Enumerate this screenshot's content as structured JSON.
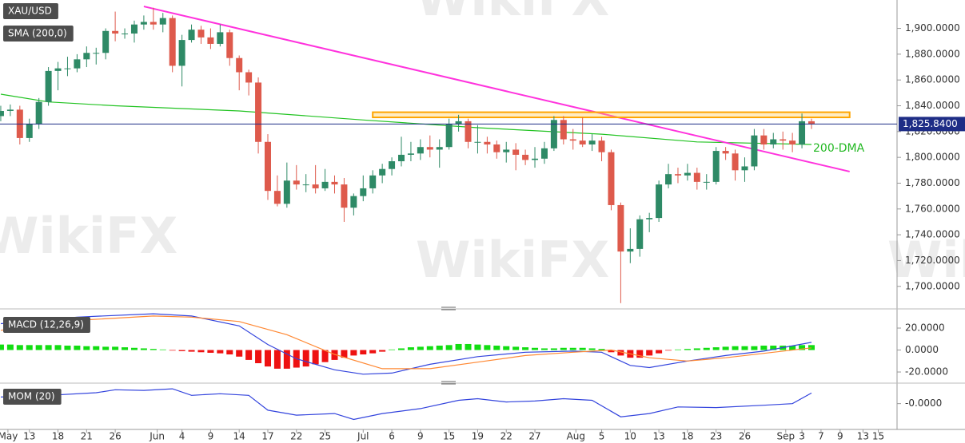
{
  "watermark": "WikiFX",
  "chart_data": [
    {
      "type": "candlestick",
      "title": "XAU/USD",
      "up_color": "#2e8a66",
      "down_color": "#de5a4c",
      "ylim": [
        1685,
        1922
      ],
      "yticks": [
        {
          "value": 1700,
          "label": "1,700.0000"
        },
        {
          "value": 1720,
          "label": "1,720.0000"
        },
        {
          "value": 1740,
          "label": "1,740.0000"
        },
        {
          "value": 1760,
          "label": "1,760.0000"
        },
        {
          "value": 1780,
          "label": "1,780.0000"
        },
        {
          "value": 1800,
          "label": "1,800.0000"
        },
        {
          "value": 1820,
          "label": "1,820.0000"
        },
        {
          "value": 1840,
          "label": "1,840.0000"
        },
        {
          "value": 1860,
          "label": "1,860.0000"
        },
        {
          "value": 1880,
          "label": "1,880.0000"
        },
        {
          "value": 1900,
          "label": "1,900.0000"
        }
      ],
      "open": [
        1832,
        1836,
        1837,
        1815,
        1826,
        1843,
        1867,
        1869,
        1869,
        1876,
        1881,
        1881,
        1898,
        1896,
        1896,
        1903,
        1905,
        1903,
        1908,
        1871,
        1891,
        1899,
        1893,
        1888,
        1897,
        1877,
        1866,
        1858,
        1812,
        1774,
        1764,
        1782,
        1779,
        1779,
        1776,
        1781,
        1779,
        1761,
        1770,
        1776,
        1786,
        1791,
        1797,
        1802,
        1803,
        1808,
        1806,
        1808,
        1826,
        1828,
        1812,
        1812,
        1810,
        1804,
        1806,
        1802,
        1798,
        1799,
        1807,
        1829,
        1814,
        1813,
        1810,
        1813,
        1804,
        1763,
        1727,
        1729,
        1752,
        1753,
        1779,
        1787,
        1786,
        1788,
        1781,
        1781,
        1805,
        1803,
        1790,
        1793,
        1817,
        1810,
        1814,
        1813,
        1810,
        1828
      ],
      "high": [
        1840,
        1841,
        1840,
        1830,
        1846,
        1870,
        1874,
        1878,
        1880,
        1886,
        1885,
        1900,
        1913,
        1900,
        1906,
        1910,
        1916,
        1912,
        1910,
        1895,
        1903,
        1902,
        1900,
        1903,
        1899,
        1879,
        1868,
        1862,
        1818,
        1786,
        1796,
        1794,
        1787,
        1794,
        1791,
        1786,
        1784,
        1772,
        1786,
        1790,
        1795,
        1800,
        1816,
        1812,
        1814,
        1817,
        1814,
        1830,
        1833,
        1830,
        1825,
        1816,
        1813,
        1812,
        1811,
        1806,
        1808,
        1812,
        1832,
        1832,
        1822,
        1831,
        1818,
        1816,
        1806,
        1765,
        1745,
        1755,
        1757,
        1782,
        1795,
        1792,
        1795,
        1792,
        1787,
        1808,
        1808,
        1806,
        1800,
        1822,
        1822,
        1819,
        1820,
        1819,
        1834,
        1830
      ],
      "low": [
        1828,
        1832,
        1810,
        1812,
        1822,
        1840,
        1852,
        1863,
        1866,
        1870,
        1872,
        1876,
        1890,
        1892,
        1889,
        1899,
        1899,
        1897,
        1866,
        1855,
        1889,
        1888,
        1884,
        1886,
        1871,
        1852,
        1848,
        1803,
        1767,
        1762,
        1761,
        1775,
        1773,
        1772,
        1774,
        1772,
        1750,
        1755,
        1766,
        1772,
        1780,
        1786,
        1793,
        1797,
        1798,
        1800,
        1792,
        1806,
        1820,
        1807,
        1803,
        1803,
        1799,
        1796,
        1790,
        1794,
        1792,
        1795,
        1805,
        1810,
        1806,
        1808,
        1805,
        1797,
        1759,
        1687,
        1718,
        1723,
        1742,
        1750,
        1776,
        1780,
        1782,
        1775,
        1775,
        1779,
        1798,
        1782,
        1781,
        1790,
        1806,
        1807,
        1806,
        1804,
        1807,
        1822
      ],
      "close": [
        1836,
        1837,
        1815,
        1826,
        1843,
        1867,
        1869,
        1869,
        1876,
        1881,
        1881,
        1898,
        1896,
        1896,
        1903,
        1905,
        1903,
        1908,
        1871,
        1891,
        1899,
        1893,
        1888,
        1897,
        1877,
        1866,
        1858,
        1812,
        1774,
        1764,
        1782,
        1779,
        1779,
        1776,
        1781,
        1779,
        1761,
        1770,
        1776,
        1786,
        1791,
        1797,
        1802,
        1803,
        1808,
        1806,
        1808,
        1826,
        1828,
        1812,
        1812,
        1810,
        1804,
        1806,
        1802,
        1798,
        1799,
        1807,
        1829,
        1814,
        1813,
        1810,
        1813,
        1804,
        1763,
        1727,
        1729,
        1752,
        1753,
        1779,
        1787,
        1786,
        1788,
        1781,
        1781,
        1805,
        1803,
        1790,
        1793,
        1817,
        1810,
        1814,
        1813,
        1810,
        1828,
        1826
      ],
      "sma": {
        "name": "SMA (200,0)",
        "color": "#22c322",
        "x": [
          0,
          5,
          12,
          25,
          38,
          50,
          63,
          73,
          85
        ],
        "values": [
          1849,
          1843,
          1840,
          1836,
          1829,
          1823,
          1818,
          1812,
          1810
        ]
      },
      "trendline": {
        "color": "#ff33dd",
        "x": [
          15,
          89
        ],
        "values": [
          1917,
          1789
        ]
      },
      "resistance": {
        "color": "#ffa500",
        "x": [
          39,
          89
        ],
        "low": 1831,
        "high": 1835
      },
      "last_price": {
        "value": 1825.84,
        "value_label": "1,825.8400",
        "color": "#1e2d86"
      },
      "annotation": "200-DMA"
    },
    {
      "type": "macd",
      "title": "MACD (12,26,9)",
      "ylim": [
        -28.7,
        33.1
      ],
      "yticks": [
        {
          "value": 20,
          "label": "20.0000"
        },
        {
          "value": 0,
          "label": "0.0000"
        },
        {
          "value": -20,
          "label": "-20.0000"
        }
      ],
      "up_color": "#11dd11",
      "down_color": "#ee1111",
      "histogram": [
        5,
        5,
        4.5,
        4.5,
        4.5,
        4.5,
        4.5,
        4,
        4,
        3.5,
        3.5,
        3,
        3,
        2.5,
        2,
        1.5,
        1,
        0.5,
        -0.5,
        -1,
        -1.5,
        -2,
        -2.5,
        -3,
        -4,
        -6,
        -9,
        -12,
        -15,
        -17,
        -17,
        -16,
        -15,
        -13,
        -11,
        -9,
        -7,
        -5,
        -4,
        -3,
        -1.5,
        0.5,
        1.5,
        2.5,
        3,
        3.5,
        4,
        4.5,
        5.5,
        5.5,
        5,
        4.5,
        4,
        3.5,
        3,
        2.5,
        2,
        1.5,
        1.5,
        2,
        2,
        2,
        1.5,
        1,
        -2,
        -5,
        -7,
        -7,
        -5,
        -3,
        -0.5,
        0.5,
        1,
        1.5,
        2,
        2.5,
        3,
        3.5,
        3.5,
        3.5,
        4,
        4,
        4,
        4,
        4.5,
        4.5
      ],
      "series": [
        {
          "color": "#3344dd",
          "x": [
            0,
            8,
            16,
            20,
            25,
            28,
            31,
            35,
            38,
            41,
            45,
            50,
            55,
            60,
            63,
            66,
            68,
            72,
            76,
            80,
            85
          ],
          "values": [
            24,
            30,
            33,
            31,
            22,
            5,
            -8,
            -18,
            -22,
            -21,
            -13,
            -6,
            -2,
            -1,
            -2,
            -14,
            -16,
            -10,
            -5,
            -1,
            7
          ]
        },
        {
          "color": "#ff8833",
          "x": [
            0,
            8,
            16,
            20,
            25,
            30,
            35,
            40,
            45,
            50,
            55,
            60,
            64,
            68,
            72,
            76,
            80,
            85
          ],
          "values": [
            18,
            27,
            31,
            30,
            26,
            14,
            -4,
            -17,
            -17,
            -11,
            -5,
            -2,
            0,
            -7,
            -10,
            -7,
            -3,
            2
          ]
        }
      ]
    },
    {
      "type": "line",
      "title": "MOM (20)",
      "ylim": [
        -71,
        50
      ],
      "yticks": [
        {
          "value": 0,
          "label": "-0.0000"
        }
      ],
      "series": [
        {
          "color": "#3344dd",
          "x": [
            0,
            5,
            10,
            12,
            15,
            18,
            20,
            23,
            26,
            28,
            31,
            35,
            37,
            40,
            44,
            48,
            50,
            53,
            56,
            59,
            62,
            65,
            68,
            71,
            75,
            80,
            83,
            85
          ],
          "values": [
            20,
            25,
            33,
            42,
            40,
            45,
            25,
            30,
            25,
            -20,
            -35,
            -30,
            -48,
            -30,
            -15,
            10,
            15,
            5,
            8,
            15,
            10,
            -40,
            -30,
            -10,
            -12,
            -5,
            0,
            32
          ]
        }
      ],
      "xlim": [
        -0.08,
        93.97
      ],
      "xticks": [
        {
          "value": 0.75,
          "label": "May"
        },
        {
          "value": 3,
          "label": "13"
        },
        {
          "value": 6,
          "label": "18"
        },
        {
          "value": 9,
          "label": "21"
        },
        {
          "value": 12,
          "label": "26"
        },
        {
          "value": 16.4,
          "label": "Jun"
        },
        {
          "value": 19,
          "label": "4"
        },
        {
          "value": 22,
          "label": "9"
        },
        {
          "value": 25,
          "label": "14"
        },
        {
          "value": 28,
          "label": "17"
        },
        {
          "value": 31,
          "label": "22"
        },
        {
          "value": 34,
          "label": "25"
        },
        {
          "value": 38,
          "label": "Jul"
        },
        {
          "value": 41,
          "label": "6"
        },
        {
          "value": 44,
          "label": "9"
        },
        {
          "value": 47,
          "label": "15"
        },
        {
          "value": 50,
          "label": "19"
        },
        {
          "value": 53,
          "label": "22"
        },
        {
          "value": 56,
          "label": "27"
        },
        {
          "value": 60.3,
          "label": "Aug"
        },
        {
          "value": 63,
          "label": "5"
        },
        {
          "value": 66,
          "label": "10"
        },
        {
          "value": 69,
          "label": "13"
        },
        {
          "value": 72,
          "label": "18"
        },
        {
          "value": 75,
          "label": "23"
        },
        {
          "value": 78,
          "label": "26"
        },
        {
          "value": 82.3,
          "label": "Sep"
        },
        {
          "value": 84,
          "label": "3"
        },
        {
          "value": 86,
          "label": "7"
        },
        {
          "value": 88,
          "label": "9"
        },
        {
          "value": 90.4,
          "label": "13"
        },
        {
          "value": 92,
          "label": "15"
        }
      ]
    }
  ]
}
